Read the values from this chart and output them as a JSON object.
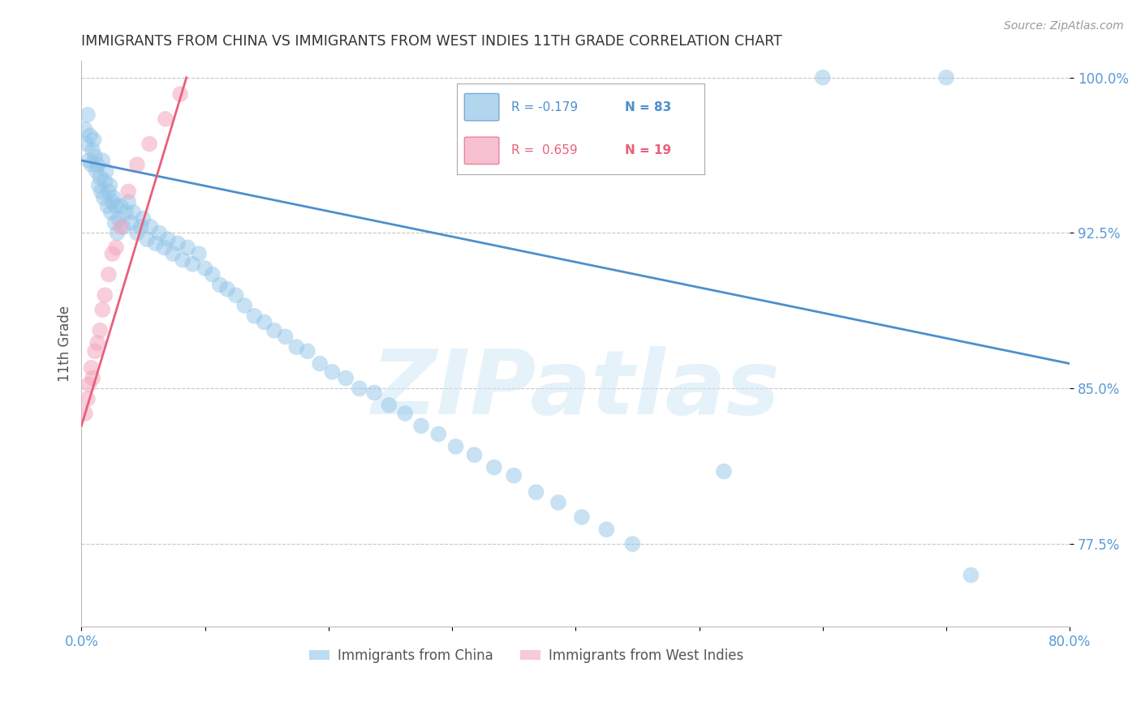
{
  "title": "IMMIGRANTS FROM CHINA VS IMMIGRANTS FROM WEST INDIES 11TH GRADE CORRELATION CHART",
  "source": "Source: ZipAtlas.com",
  "ylabel": "11th Grade",
  "xlim": [
    0.0,
    0.8
  ],
  "ylim": [
    0.735,
    1.008
  ],
  "xticks": [
    0.0,
    0.1,
    0.2,
    0.3,
    0.4,
    0.5,
    0.6,
    0.7,
    0.8
  ],
  "xticklabels": [
    "0.0%",
    "",
    "",
    "",
    "",
    "",
    "",
    "",
    "80.0%"
  ],
  "yticks": [
    0.775,
    0.85,
    0.925,
    1.0
  ],
  "yticklabels": [
    "77.5%",
    "85.0%",
    "92.5%",
    "100.0%"
  ],
  "china_color": "#92c5e8",
  "west_indies_color": "#f4a6be",
  "china_line_color": "#4e8fcc",
  "west_indies_line_color": "#e8607a",
  "watermark": "ZIPatlas",
  "background_color": "#ffffff",
  "grid_color": "#c8c8c8",
  "title_color": "#333333",
  "axis_label_color": "#555555",
  "tick_label_color": "#5b9bd5",
  "china_x": [
    0.003,
    0.004,
    0.005,
    0.006,
    0.007,
    0.008,
    0.009,
    0.01,
    0.011,
    0.012,
    0.013,
    0.014,
    0.015,
    0.016,
    0.017,
    0.018,
    0.019,
    0.02,
    0.021,
    0.022,
    0.023,
    0.024,
    0.025,
    0.026,
    0.027,
    0.028,
    0.029,
    0.03,
    0.032,
    0.034,
    0.036,
    0.038,
    0.04,
    0.042,
    0.045,
    0.048,
    0.05,
    0.053,
    0.056,
    0.06,
    0.063,
    0.067,
    0.07,
    0.074,
    0.078,
    0.082,
    0.086,
    0.09,
    0.095,
    0.1,
    0.106,
    0.112,
    0.118,
    0.125,
    0.132,
    0.14,
    0.148,
    0.156,
    0.165,
    0.174,
    0.183,
    0.193,
    0.203,
    0.214,
    0.225,
    0.237,
    0.249,
    0.262,
    0.275,
    0.289,
    0.303,
    0.318,
    0.334,
    0.35,
    0.368,
    0.386,
    0.405,
    0.425,
    0.446,
    0.52,
    0.6,
    0.7,
    0.72
  ],
  "china_y": [
    0.975,
    0.968,
    0.982,
    0.96,
    0.972,
    0.958,
    0.965,
    0.97,
    0.962,
    0.955,
    0.958,
    0.948,
    0.952,
    0.945,
    0.96,
    0.942,
    0.95,
    0.955,
    0.938,
    0.945,
    0.948,
    0.935,
    0.94,
    0.942,
    0.93,
    0.938,
    0.925,
    0.932,
    0.938,
    0.928,
    0.935,
    0.94,
    0.93,
    0.935,
    0.925,
    0.928,
    0.932,
    0.922,
    0.928,
    0.92,
    0.925,
    0.918,
    0.922,
    0.915,
    0.92,
    0.912,
    0.918,
    0.91,
    0.915,
    0.908,
    0.905,
    0.9,
    0.898,
    0.895,
    0.89,
    0.885,
    0.882,
    0.878,
    0.875,
    0.87,
    0.868,
    0.862,
    0.858,
    0.855,
    0.85,
    0.848,
    0.842,
    0.838,
    0.832,
    0.828,
    0.822,
    0.818,
    0.812,
    0.808,
    0.8,
    0.795,
    0.788,
    0.782,
    0.775,
    0.81,
    1.0,
    1.0,
    0.76
  ],
  "wi_x": [
    0.003,
    0.005,
    0.006,
    0.008,
    0.009,
    0.011,
    0.013,
    0.015,
    0.017,
    0.019,
    0.022,
    0.025,
    0.028,
    0.032,
    0.038,
    0.045,
    0.055,
    0.068,
    0.08
  ],
  "wi_y": [
    0.838,
    0.845,
    0.852,
    0.86,
    0.855,
    0.868,
    0.872,
    0.878,
    0.888,
    0.895,
    0.905,
    0.915,
    0.918,
    0.928,
    0.945,
    0.958,
    0.968,
    0.98,
    0.992
  ],
  "china_trend_x": [
    0.0,
    0.8
  ],
  "china_trend_y": [
    0.96,
    0.862
  ],
  "wi_trend_x": [
    0.0,
    0.085
  ],
  "wi_trend_y": [
    0.832,
    1.0
  ]
}
